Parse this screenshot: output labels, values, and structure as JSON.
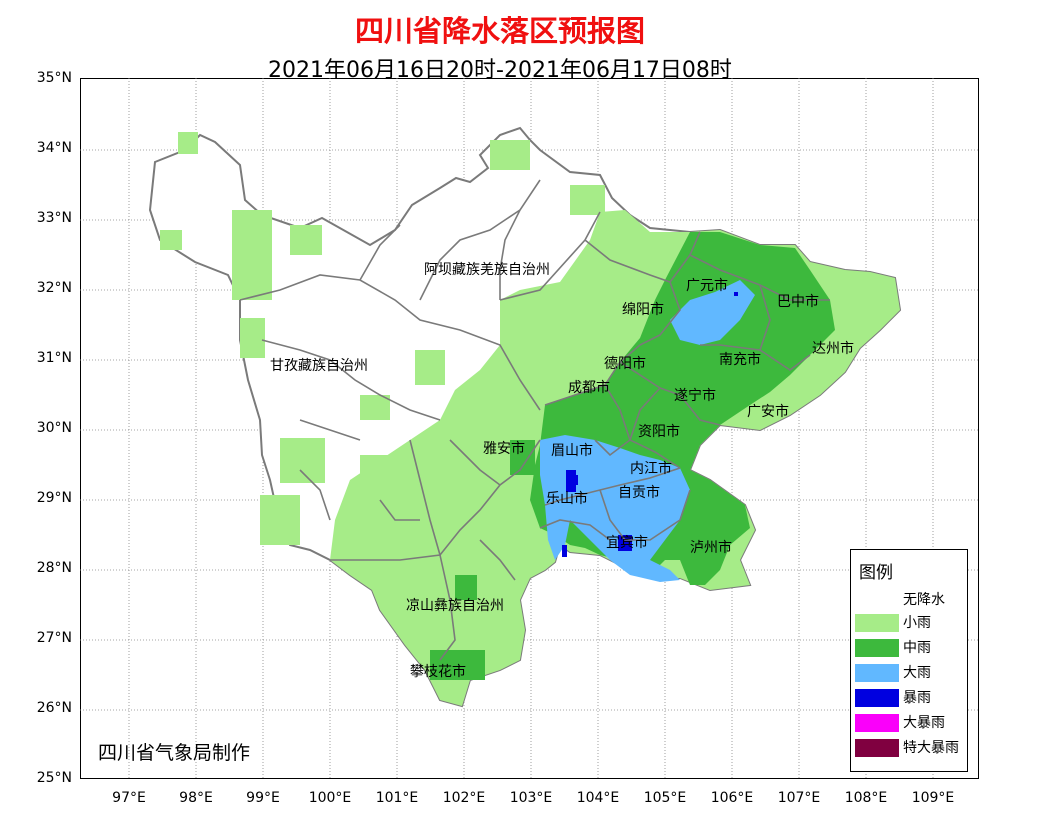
{
  "title": "四川省降水落区预报图",
  "subtitle": "2021年06月16日20时-2021年06月17日08时",
  "maker": "四川省气象局制作",
  "lat_labels": [
    "35°N",
    "34°N",
    "33°N",
    "32°N",
    "31°N",
    "30°N",
    "29°N",
    "28°N",
    "27°N",
    "26°N",
    "25°N"
  ],
  "lon_labels": [
    "97°E",
    "98°E",
    "99°E",
    "100°E",
    "101°E",
    "102°E",
    "103°E",
    "104°E",
    "105°E",
    "106°E",
    "107°E",
    "108°E",
    "109°E"
  ],
  "legend": {
    "title": "图例",
    "items": [
      {
        "label": "无降水",
        "color": "#ffffff"
      },
      {
        "label": "小雨",
        "color": "#a6ec88"
      },
      {
        "label": "中雨",
        "color": "#3db93d"
      },
      {
        "label": "大雨",
        "color": "#61b8ff"
      },
      {
        "label": "暴雨",
        "color": "#0000e0"
      },
      {
        "label": "大暴雨",
        "color": "#fa00fa"
      },
      {
        "label": "特大暴雨",
        "color": "#800040"
      }
    ]
  },
  "regions": {
    "aba": "阿坝藏族羌族自治州",
    "ganzi": "甘孜藏族自治州",
    "liangshan": "凉山彝族自治州",
    "guangyuan": "广元市",
    "bazhong": "巴中市",
    "mianyang": "绵阳市",
    "dazhou": "达州市",
    "deyang": "德阳市",
    "nanchong": "南充市",
    "chengdu": "成都市",
    "suining": "遂宁市",
    "guangan": "广安市",
    "ziyang": "资阳市",
    "yaan": "雅安市",
    "meishan": "眉山市",
    "neijiang": "内江市",
    "zigong": "自贡市",
    "leshan": "乐山市",
    "yibin": "宜宾市",
    "luzhou": "泸州市",
    "panzhihua": "攀枝花市"
  }
}
